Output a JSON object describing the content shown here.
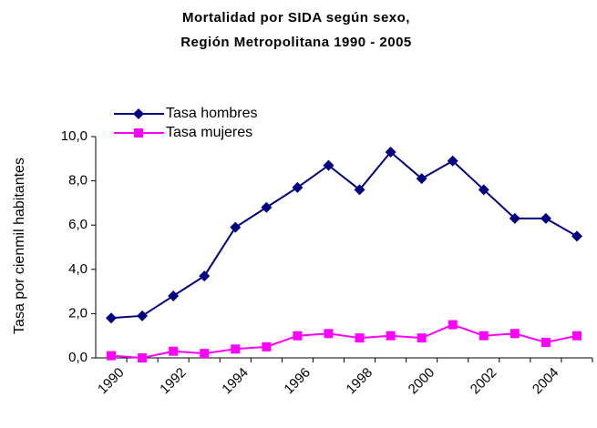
{
  "chart_data": {
    "type": "line",
    "title": "Mortalidad por SIDA según sexo,",
    "subtitle": "Región Metropolitana 1990 - 2005",
    "y_label": "Tasa por cienmil habitantes",
    "categories": [
      1990,
      null,
      1992,
      null,
      1994,
      null,
      1996,
      null,
      1998,
      null,
      2000,
      null,
      2002,
      null,
      2004,
      null
    ],
    "series": [
      {
        "name": "Tasa hombres",
        "color": "#000080",
        "marker": "diamond",
        "values": [
          1.8,
          1.9,
          2.8,
          3.7,
          5.9,
          6.8,
          7.7,
          8.7,
          7.6,
          9.3,
          8.1,
          8.9,
          7.6,
          6.3,
          6.3,
          5.5
        ]
      },
      {
        "name": "Tasa mujeres",
        "color": "#ff00ff",
        "marker": "square",
        "values": [
          0.1,
          0.0,
          0.3,
          0.2,
          0.4,
          0.5,
          1.0,
          1.1,
          0.9,
          1.0,
          0.9,
          1.5,
          1.0,
          1.1,
          0.7,
          1.0
        ]
      }
    ],
    "ylim": [
      0,
      10
    ],
    "yticks": [
      {
        "value": 0,
        "label": "0,0"
      },
      {
        "value": 2,
        "label": "2,0"
      },
      {
        "value": 4,
        "label": "4,0"
      },
      {
        "value": 6,
        "label": "6,0"
      },
      {
        "value": 8,
        "label": "8,0"
      },
      {
        "value": 10,
        "label": "10,0"
      }
    ],
    "grid": false,
    "legend": "upper left"
  }
}
